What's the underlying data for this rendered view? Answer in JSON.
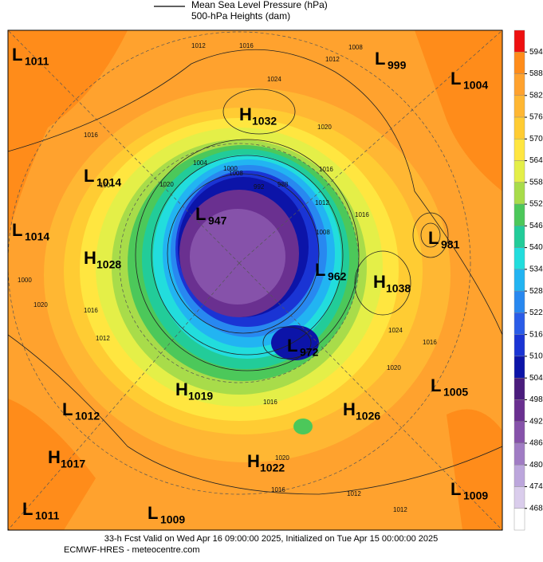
{
  "legend": [
    "Mean Sea Level Pressure (hPa)",
    "500-hPa Heights (dam)"
  ],
  "centers": [
    {
      "type": "L",
      "value": 1011
    },
    {
      "type": "L",
      "value": 999
    },
    {
      "type": "L",
      "value": 1004
    },
    {
      "type": "H",
      "value": 1032
    },
    {
      "type": "L",
      "value": 1014
    },
    {
      "type": "L",
      "value": 1014
    },
    {
      "type": "H",
      "value": 1028
    },
    {
      "type": "L",
      "value": 947
    },
    {
      "type": "L",
      "value": 981
    },
    {
      "type": "L",
      "value": 962
    },
    {
      "type": "H",
      "value": 1038
    },
    {
      "type": "L",
      "value": 972
    },
    {
      "type": "H",
      "value": 1019
    },
    {
      "type": "L",
      "value": 1005
    },
    {
      "type": "L",
      "value": 1012
    },
    {
      "type": "H",
      "value": 1026
    },
    {
      "type": "H",
      "value": 1017
    },
    {
      "type": "H",
      "value": 1022
    },
    {
      "type": "L",
      "value": 1009
    },
    {
      "type": "L",
      "value": 1011
    },
    {
      "type": "L",
      "value": 1009
    }
  ],
  "contour_labels": [
    1012,
    1016,
    1024,
    1016,
    1012,
    1008,
    1020,
    1008,
    1004,
    1000,
    992,
    988,
    1016,
    1012,
    1008,
    1004,
    1000,
    1016,
    1020,
    1024,
    1016,
    1012,
    1016,
    1020,
    1012,
    1016,
    1020,
    1012,
    1020,
    1016
  ],
  "colorbar": {
    "ticks": [
      594,
      588,
      582,
      576,
      570,
      564,
      558,
      552,
      546,
      540,
      534,
      528,
      522,
      516,
      510,
      504,
      498,
      492,
      486,
      480,
      474,
      468
    ],
    "colors": [
      "#ee1010",
      "#ff8c1a",
      "#ffa22e",
      "#ffb733",
      "#ffcc33",
      "#ffe640",
      "#e4ef48",
      "#a8dc4a",
      "#4cc85a",
      "#22cc99",
      "#22dddd",
      "#22b4f2",
      "#2888f0",
      "#2a5ce8",
      "#1a34d4",
      "#0c14a8",
      "#4a1c7c",
      "#6a3090",
      "#8652aa",
      "#a07cc4",
      "#bca6dc",
      "#dacdec",
      "#ffffff"
    ]
  },
  "footer": [
    "33-h Fcst Valid on Wed Apr 16 09:00:00 2025, Initialized on Tue Apr 15 00:00:00 2025",
    "ECMWF-HRES  - meteocentre.com"
  ]
}
